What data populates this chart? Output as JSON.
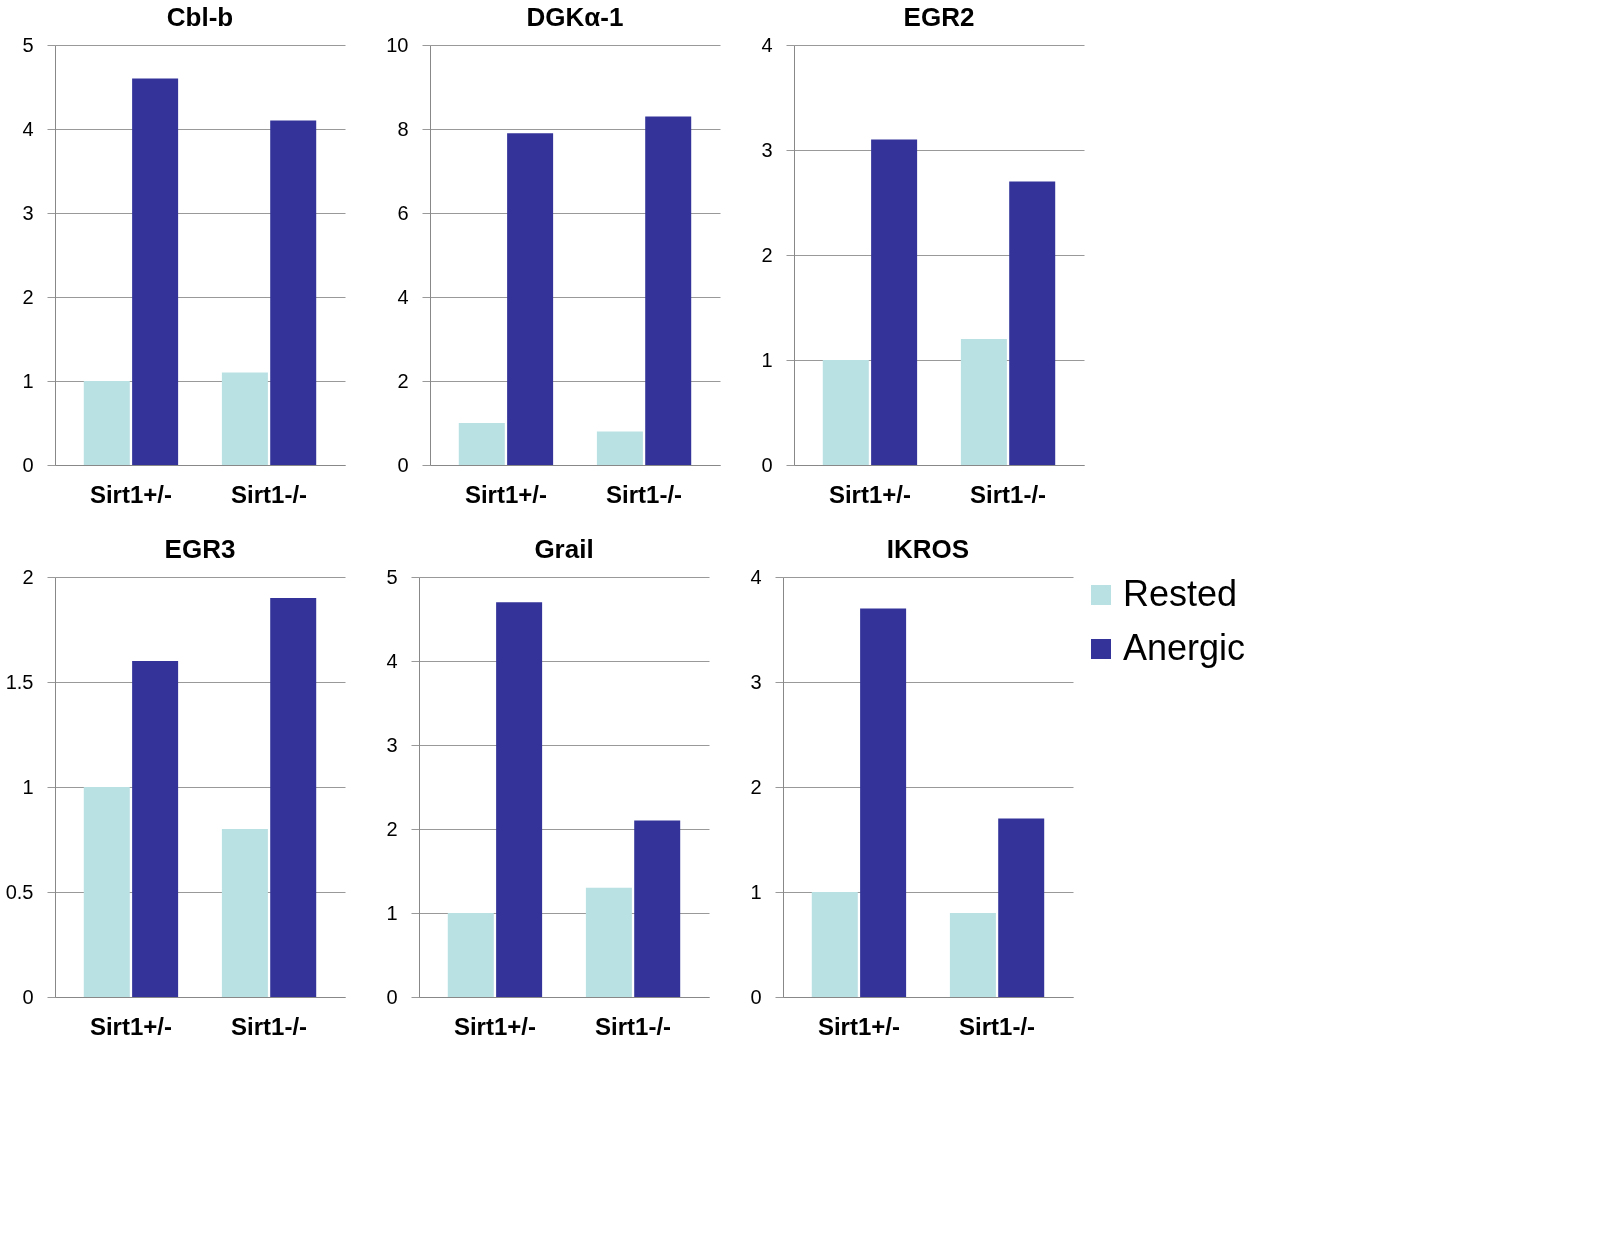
{
  "chart_data": [
    {
      "type": "bar",
      "title": "Cbl-b",
      "categories": [
        "Sirt1+/-",
        "Sirt1-/-"
      ],
      "series": [
        {
          "color": "#b9e0e3",
          "values": [
            1,
            1.1
          ]
        },
        {
          "color": "#333399",
          "values": [
            4.6,
            4.1
          ]
        }
      ],
      "ylim": [
        0,
        5
      ],
      "yticks": [
        0,
        1,
        2,
        3,
        4,
        5
      ],
      "grid": "y",
      "legend": false
    },
    {
      "type": "bar",
      "title": "DGKα-1",
      "categories": [
        "Sirt1+/-",
        "Sirt1-/-"
      ],
      "series": [
        {
          "color": "#b9e0e3",
          "values": [
            1,
            0.8
          ]
        },
        {
          "color": "#333399",
          "values": [
            7.9,
            8.3
          ]
        }
      ],
      "ylim": [
        0,
        10
      ],
      "yticks": [
        0,
        2,
        4,
        6,
        8,
        10
      ],
      "grid": "y",
      "legend": false
    },
    {
      "type": "bar",
      "title": "EGR2",
      "categories": [
        "Sirt1+/-",
        "Sirt1-/-"
      ],
      "series": [
        {
          "color": "#b9e0e3",
          "values": [
            1,
            1.2
          ]
        },
        {
          "color": "#333399",
          "values": [
            3.1,
            2.7
          ]
        }
      ],
      "ylim": [
        0,
        4
      ],
      "yticks": [
        0,
        1,
        2,
        3,
        4
      ],
      "grid": "y",
      "legend": false
    },
    {
      "type": "bar",
      "title": "EGR3",
      "categories": [
        "Sirt1+/-",
        "Sirt1-/-"
      ],
      "series": [
        {
          "color": "#b9e0e3",
          "values": [
            1,
            0.8
          ]
        },
        {
          "color": "#333399",
          "values": [
            1.6,
            1.9
          ]
        }
      ],
      "ylim": [
        0,
        2
      ],
      "yticks": [
        0,
        0.5,
        1,
        1.5,
        2
      ],
      "grid": "y",
      "legend": false
    },
    {
      "type": "bar",
      "title": "Grail",
      "categories": [
        "Sirt1+/-",
        "Sirt1-/-"
      ],
      "series": [
        {
          "color": "#b9e0e3",
          "values": [
            1,
            1.3
          ]
        },
        {
          "color": "#333399",
          "values": [
            4.7,
            2.1
          ]
        }
      ],
      "ylim": [
        0,
        5
      ],
      "yticks": [
        0,
        1,
        2,
        3,
        4,
        5
      ],
      "grid": "y",
      "legend": false
    },
    {
      "type": "bar",
      "title": "IKROS",
      "categories": [
        "Sirt1+/-",
        "Sirt1-/-"
      ],
      "series": [
        {
          "name": "Rested",
          "color": "#b9e0e3",
          "values": [
            1,
            0.8
          ]
        },
        {
          "name": "Anergic",
          "color": "#333399",
          "values": [
            3.7,
            1.7
          ]
        }
      ],
      "ylim": [
        0,
        4
      ],
      "yticks": [
        0,
        1,
        2,
        3,
        4
      ],
      "grid": "y",
      "legend": "right"
    }
  ]
}
